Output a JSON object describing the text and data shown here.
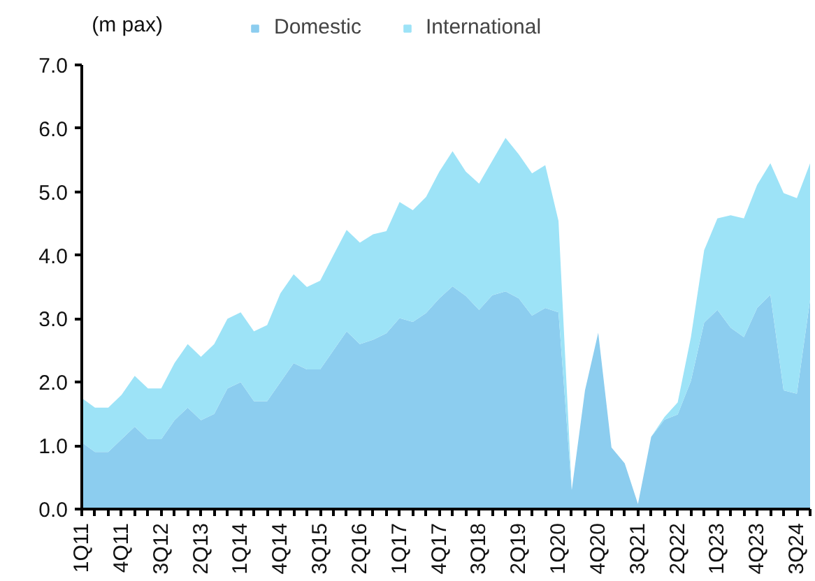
{
  "chart_data": {
    "type": "area",
    "stacked": true,
    "ylabel": "(m pax)",
    "categories": [
      "1Q11",
      null,
      null,
      "4Q11",
      null,
      null,
      "3Q12",
      null,
      null,
      "2Q13",
      null,
      null,
      "1Q14",
      null,
      null,
      "4Q14",
      null,
      null,
      "3Q15",
      null,
      null,
      "2Q16",
      null,
      null,
      "1Q17",
      null,
      null,
      "4Q17",
      null,
      null,
      "3Q18",
      null,
      null,
      "2Q19",
      null,
      null,
      "1Q20",
      null,
      null,
      "4Q20",
      null,
      null,
      "3Q21",
      null,
      null,
      "2Q22",
      null,
      null,
      "1Q23",
      null,
      null,
      "4Q23",
      null,
      null,
      "3Q24",
      null
    ],
    "series": [
      {
        "name": "Domestic",
        "color": "#8ccdef",
        "values": [
          1.05,
          0.9,
          0.9,
          1.1,
          1.3,
          1.1,
          1.1,
          1.4,
          1.6,
          1.4,
          1.5,
          1.9,
          2.0,
          1.7,
          1.7,
          2.0,
          2.3,
          2.2,
          2.2,
          2.5,
          2.8,
          2.6,
          2.67,
          2.77,
          3.01,
          2.95,
          3.09,
          3.32,
          3.51,
          3.36,
          3.14,
          3.37,
          3.43,
          3.32,
          3.05,
          3.17,
          3.1,
          0.3,
          1.87,
          2.78,
          0.97,
          0.72,
          0.08,
          1.14,
          1.41,
          1.49,
          2.02,
          2.94,
          3.14,
          2.86,
          2.71,
          3.17,
          3.38,
          1.87,
          1.82,
          3.3
        ]
      },
      {
        "name": "International",
        "color": "#9de3f7",
        "values": [
          0.7,
          0.7,
          0.7,
          0.7,
          0.8,
          0.8,
          0.8,
          0.9,
          1.0,
          1.0,
          1.1,
          1.1,
          1.1,
          1.1,
          1.2,
          1.4,
          1.4,
          1.3,
          1.4,
          1.5,
          1.6,
          1.6,
          1.66,
          1.61,
          1.83,
          1.76,
          1.83,
          2.0,
          2.13,
          1.96,
          1.99,
          2.12,
          2.42,
          2.27,
          2.24,
          2.25,
          1.44,
          0,
          0,
          0,
          0,
          0,
          0,
          0,
          0.04,
          0.19,
          0.69,
          1.14,
          1.44,
          1.77,
          1.87,
          1.94,
          2.07,
          3.11,
          3.08,
          2.15
        ]
      }
    ],
    "ylim": [
      0,
      7
    ],
    "yticks": [
      {
        "value": 0,
        "label": "0.0"
      },
      {
        "value": 1,
        "label": "1.0"
      },
      {
        "value": 2,
        "label": "2.0"
      },
      {
        "value": 3,
        "label": "3.0"
      },
      {
        "value": 4,
        "label": "4.0"
      },
      {
        "value": 5,
        "label": "5.0"
      },
      {
        "value": 6,
        "label": "6.0"
      },
      {
        "value": 7,
        "label": "7.0"
      }
    ],
    "legend": "top",
    "grid": false
  }
}
